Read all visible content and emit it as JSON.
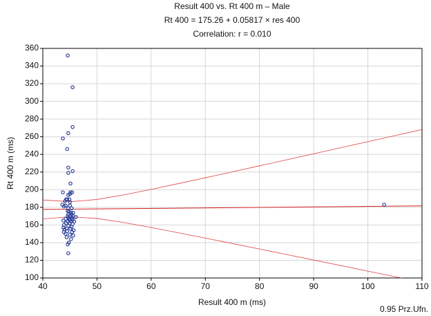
{
  "chart_data": {
    "type": "scatter",
    "title": "Result 400 vs. Rt 400 m – Male",
    "subtitle": "Rt 400 = 175.26 + 0.05817 × res 400",
    "annotation": "Correlation: r = 0.010",
    "footnote": "0.95 Prz.Ufn.",
    "x_label": "Result 400 m (ms)",
    "y_label": "Rt 400 m (ms)",
    "xlim": [
      40,
      110
    ],
    "xticks": [
      40,
      50,
      60,
      70,
      80,
      90,
      100,
      110
    ],
    "ylim": [
      100,
      360
    ],
    "yticks": [
      100,
      120,
      140,
      160,
      180,
      200,
      220,
      240,
      260,
      280,
      300,
      320,
      340,
      360
    ],
    "grid": true,
    "series": [
      {
        "color": "#2b3f9a",
        "x": [
          44.6,
          45.5,
          45.5,
          44.7,
          43.7,
          44.5,
          44.7,
          45.5,
          44.7,
          45.1,
          103,
          43.7,
          45.1,
          45.4,
          45.0,
          44.7,
          44.3,
          44.5,
          44.9,
          44.1,
          45.0,
          43.6,
          44.2,
          45.0,
          43.9,
          44.7,
          45.3,
          44.6,
          44.8,
          45.2,
          45.6,
          44.7,
          45.3,
          44.6,
          45.1,
          45.6,
          46.1,
          44.8,
          45.4,
          44.2,
          44.9,
          45.5,
          43.8,
          44.6,
          45.2,
          45.8,
          44.3,
          45.0,
          45.5,
          43.9,
          44.7,
          45.3,
          43.8,
          44.4,
          45.1,
          44.0,
          45.7,
          44.5,
          43.9,
          45.4,
          44.2,
          45.0,
          45.6,
          44.4,
          45.2,
          44.8,
          44.6,
          44.7
        ],
        "values": [
          352,
          316,
          271,
          264,
          258,
          246,
          225,
          221,
          219,
          207,
          183,
          197,
          197,
          197,
          195,
          194,
          189,
          189,
          189,
          187,
          186,
          183,
          182,
          182,
          181,
          179,
          179,
          176,
          175,
          174,
          174,
          172,
          172,
          170,
          170,
          170,
          169,
          168,
          168,
          167,
          166,
          166,
          165,
          164,
          164,
          164,
          162,
          162,
          161,
          160,
          159,
          158,
          157,
          156,
          156,
          155,
          154,
          153,
          152,
          152,
          150,
          149,
          148,
          146,
          144,
          140,
          138,
          128
        ]
      }
    ],
    "fit": {
      "color": "#d42020",
      "x": [
        40,
        110
      ],
      "values": [
        177.59,
        181.66
      ]
    },
    "band": {
      "color": "#e04040",
      "x": [
        40,
        45,
        50,
        55,
        60,
        65,
        70,
        75,
        80,
        85,
        90,
        95,
        100,
        105,
        110
      ],
      "upper": [
        188.35,
        186.38,
        188.94,
        194.19,
        200.35,
        206.85,
        213.5,
        220.24,
        227.02,
        233.84,
        240.68,
        247.53,
        254.4,
        261.26,
        268.14
      ],
      "lower": [
        166.83,
        169.38,
        167.4,
        162.73,
        157.15,
        151.23,
        145.16,
        139.0,
        132.8,
        126.56,
        120.32,
        114.05,
        107.76,
        101.48,
        95.18
      ]
    }
  }
}
